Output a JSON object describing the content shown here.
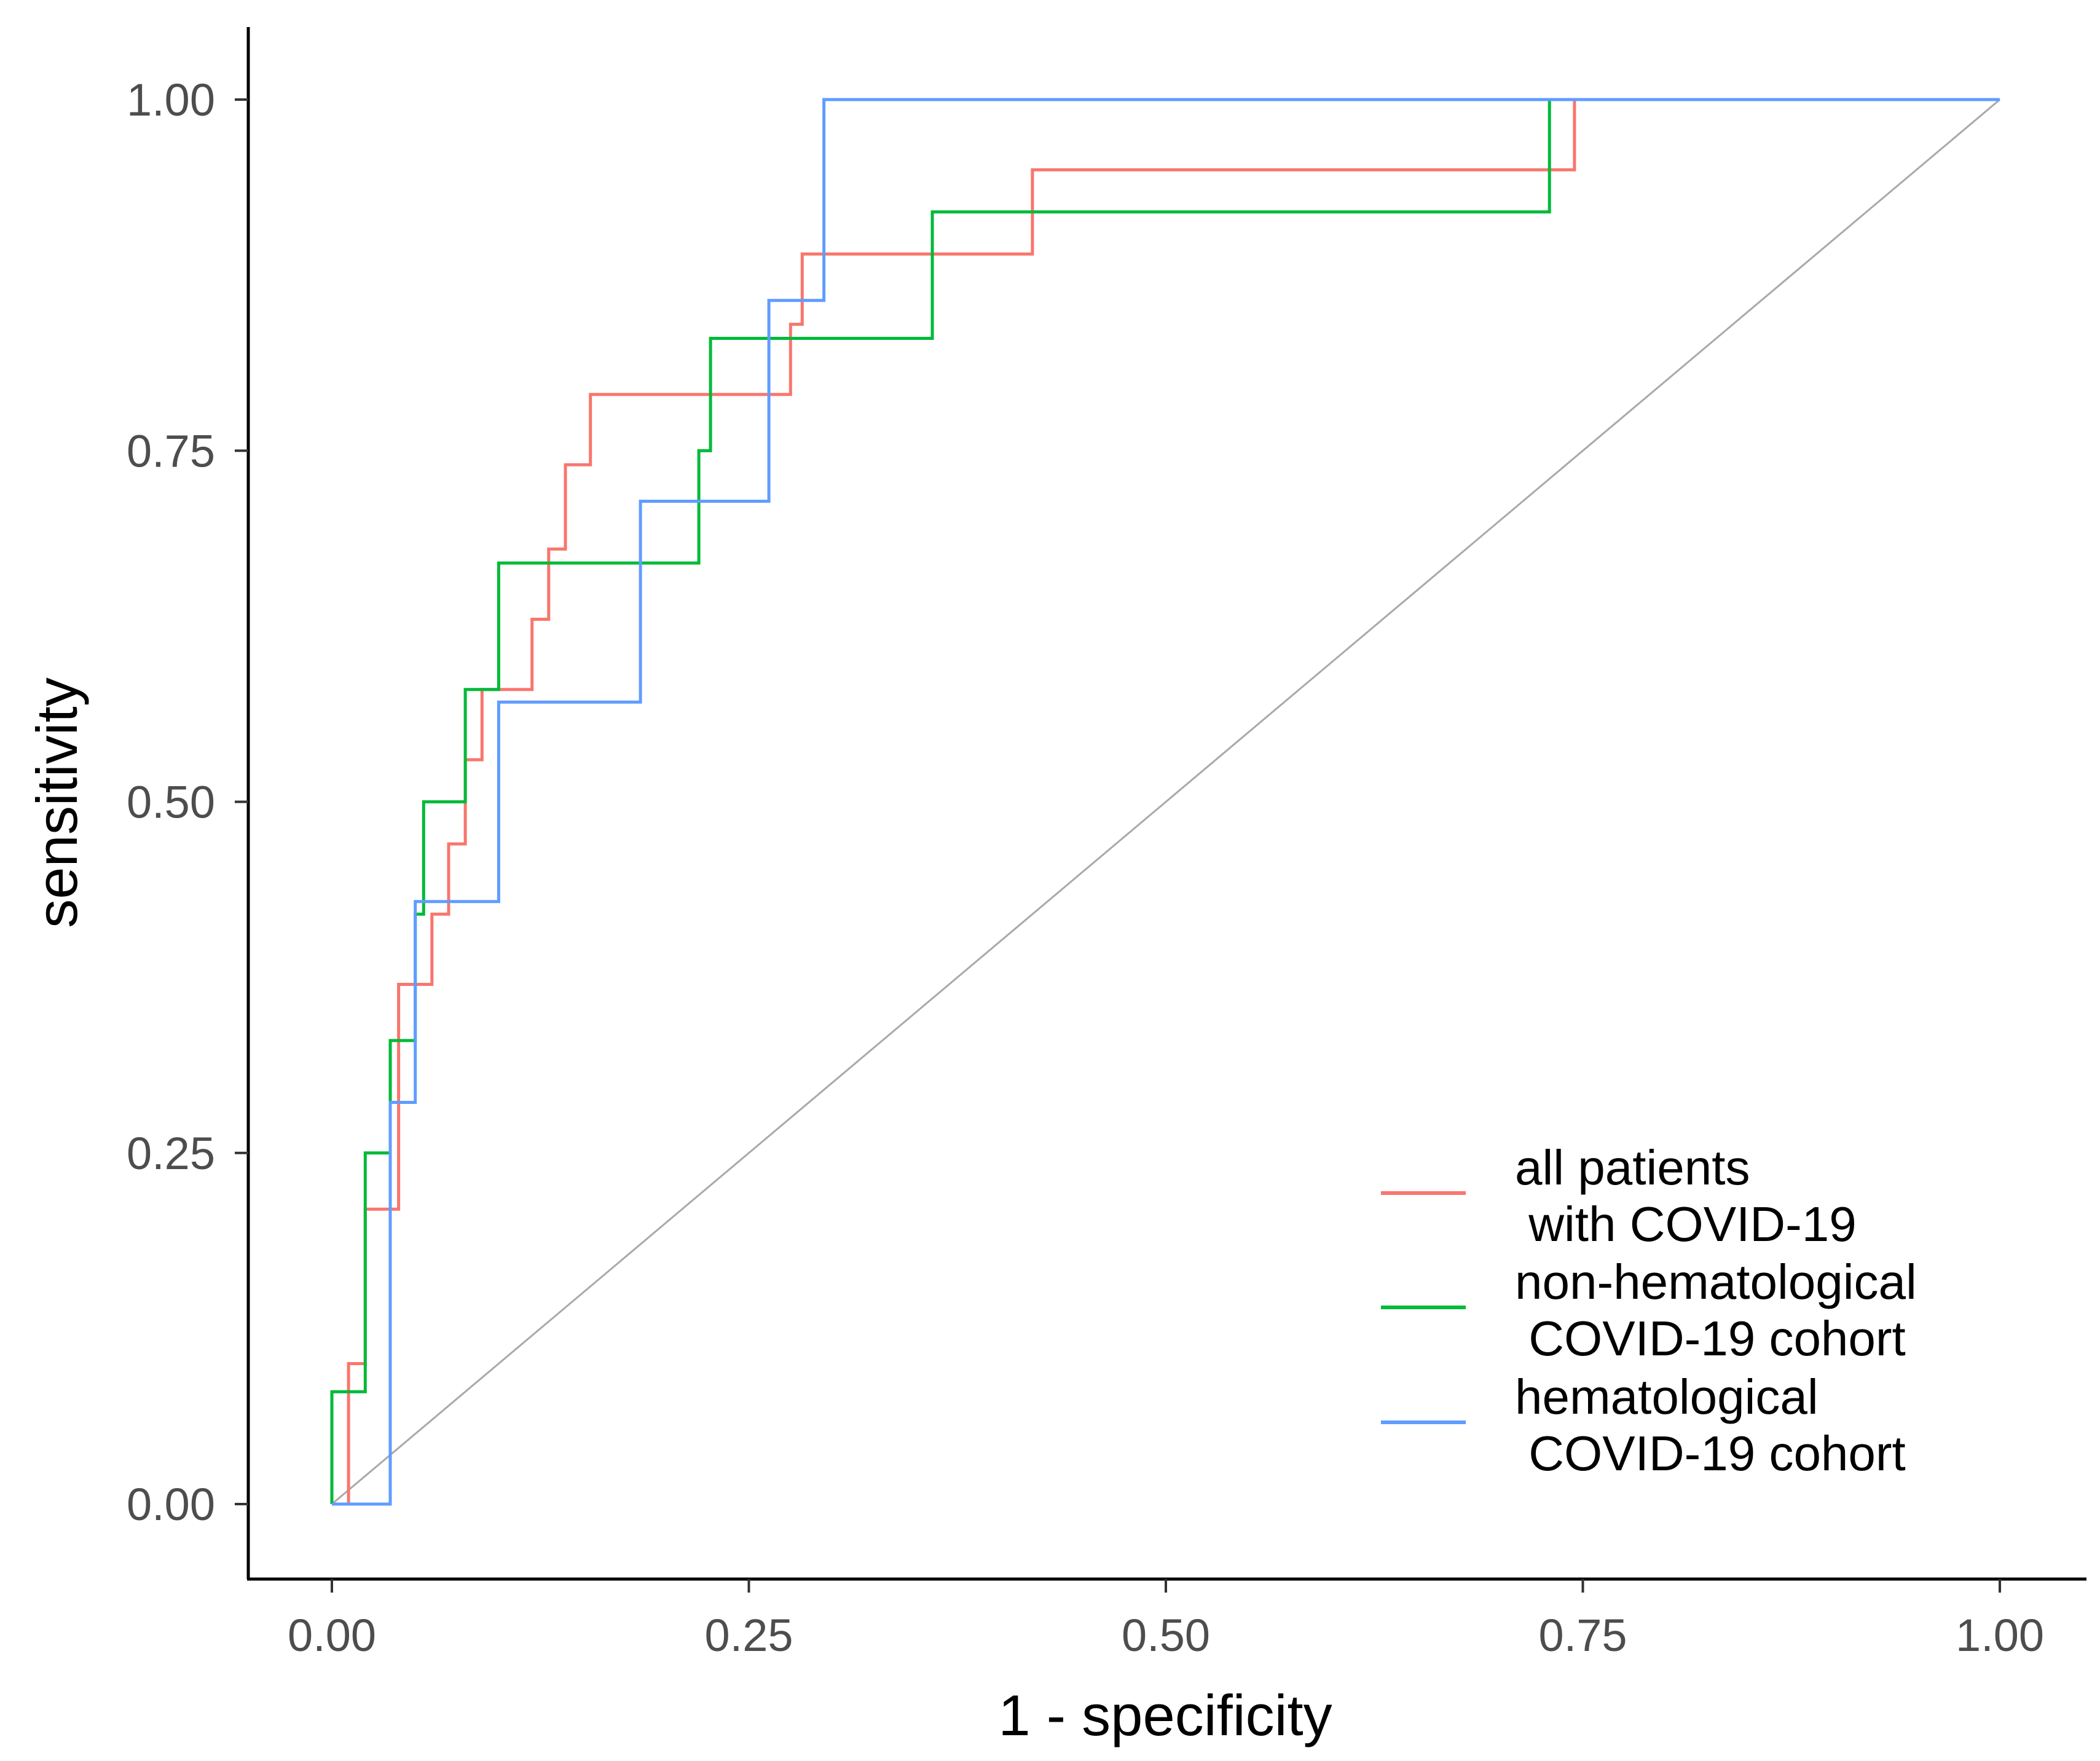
{
  "chart_data": {
    "type": "line",
    "title": "",
    "xlabel": "1 - specificity",
    "ylabel": "sensitivity",
    "xlim": [
      0,
      1
    ],
    "ylim": [
      0,
      1
    ],
    "x_ticks": [
      0,
      0.25,
      0.5,
      0.75,
      1
    ],
    "x_tick_labels": [
      "0.00",
      "0.25",
      "0.50",
      "0.75",
      "1.00"
    ],
    "y_ticks": [
      0,
      0.25,
      0.5,
      0.75,
      1
    ],
    "y_tick_labels": [
      "0.00",
      "0.25",
      "0.50",
      "0.75",
      "1.00"
    ],
    "grid": false,
    "legend_position": "bottom-right",
    "reference_line": {
      "name": "chance diagonal",
      "x": [
        0,
        1
      ],
      "y": [
        0,
        1
      ],
      "color": "#a9a9a9"
    },
    "series": [
      {
        "name": "all patients with COVID-19",
        "legend_lines": [
          "all patients",
          " with COVID-19"
        ],
        "color": "#f8766d",
        "x": [
          0.0,
          0.01,
          0.01,
          0.02,
          0.02,
          0.04,
          0.04,
          0.05,
          0.05,
          0.06,
          0.06,
          0.07,
          0.07,
          0.08,
          0.08,
          0.09,
          0.09,
          0.1,
          0.1,
          0.12,
          0.12,
          0.13,
          0.13,
          0.14,
          0.14,
          0.155,
          0.155,
          0.275,
          0.275,
          0.282,
          0.282,
          0.42,
          0.42,
          0.745,
          0.745,
          1.0
        ],
        "y": [
          0.0,
          0.0,
          0.1,
          0.1,
          0.21,
          0.21,
          0.37,
          0.37,
          0.37,
          0.37,
          0.42,
          0.42,
          0.47,
          0.47,
          0.53,
          0.53,
          0.58,
          0.58,
          0.58,
          0.58,
          0.63,
          0.63,
          0.68,
          0.68,
          0.74,
          0.74,
          0.79,
          0.79,
          0.84,
          0.84,
          0.89,
          0.89,
          0.95,
          0.95,
          1.0,
          1.0
        ]
      },
      {
        "name": "non-hematological COVID-19 cohort",
        "legend_lines": [
          "non-hematological",
          " COVID-19 cohort"
        ],
        "color": "#00ba38",
        "x": [
          0.0,
          0.0,
          0.02,
          0.02,
          0.035,
          0.035,
          0.05,
          0.05,
          0.055,
          0.055,
          0.08,
          0.08,
          0.1,
          0.1,
          0.22,
          0.22,
          0.227,
          0.227,
          0.36,
          0.36,
          0.73,
          0.73,
          1.0
        ],
        "y": [
          0.0,
          0.08,
          0.08,
          0.25,
          0.25,
          0.33,
          0.33,
          0.42,
          0.42,
          0.5,
          0.5,
          0.58,
          0.58,
          0.67,
          0.67,
          0.75,
          0.75,
          0.83,
          0.83,
          0.92,
          0.92,
          1.0,
          1.0
        ]
      },
      {
        "name": "hematological COVID-19 cohort",
        "legend_lines": [
          "hematological",
          " COVID-19 cohort"
        ],
        "color": "#619cff",
        "x": [
          0.0,
          0.035,
          0.035,
          0.05,
          0.05,
          0.1,
          0.1,
          0.185,
          0.185,
          0.262,
          0.262,
          0.295,
          0.295,
          1.0
        ],
        "y": [
          0.0,
          0.0,
          0.286,
          0.286,
          0.429,
          0.429,
          0.571,
          0.571,
          0.714,
          0.714,
          0.857,
          0.857,
          1.0,
          1.0
        ]
      }
    ]
  }
}
